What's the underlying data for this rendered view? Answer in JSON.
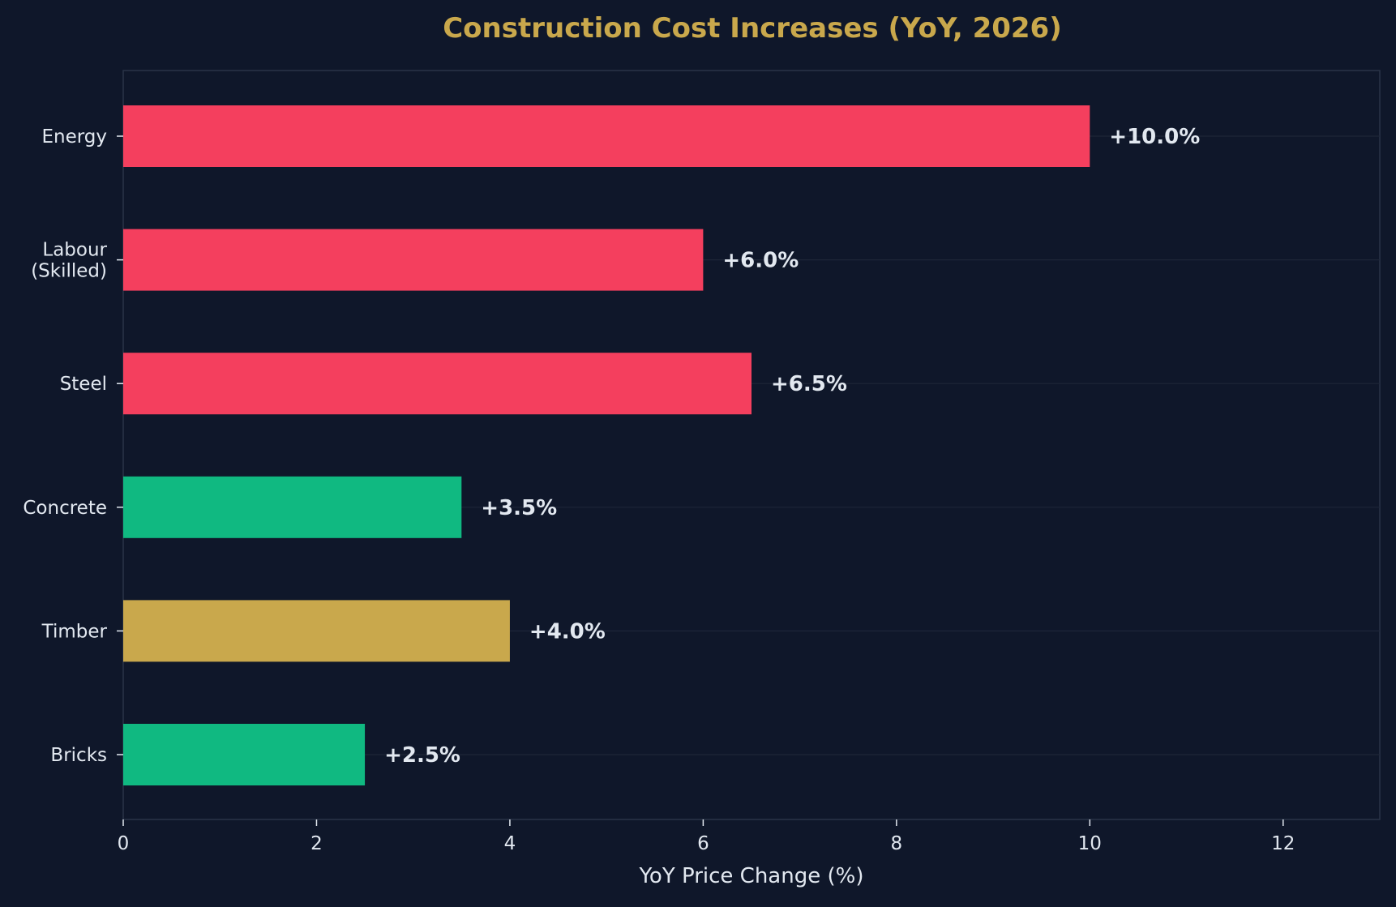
{
  "chart_data": {
    "type": "bar",
    "orientation": "horizontal",
    "title": "Construction Cost Increases (YoY, 2026)",
    "xlabel": "YoY Price Change (%)",
    "ylabel": "",
    "xlim": [
      0,
      13
    ],
    "xticks": [
      0,
      2,
      4,
      6,
      8,
      10,
      12
    ],
    "grid": "horizontal lines at each category",
    "categories": [
      "Energy",
      "Labour\n(Skilled)",
      "Steel",
      "Concrete",
      "Timber",
      "Bricks"
    ],
    "values": [
      10.0,
      6.0,
      6.5,
      3.5,
      4.0,
      2.5
    ],
    "data_labels": [
      "+10.0%",
      "+6.0%",
      "+6.5%",
      "+3.5%",
      "+4.0%",
      "+2.5%"
    ],
    "bar_colors": [
      "#f43f5e",
      "#f43f5e",
      "#f43f5e",
      "#10b981",
      "#c9a84c",
      "#10b981"
    ]
  },
  "colors": {
    "background": "#0f172a",
    "title": "#c9a84c",
    "text": "#e2e8f0",
    "axis": "#2a3447",
    "grid": "#1e2638"
  }
}
